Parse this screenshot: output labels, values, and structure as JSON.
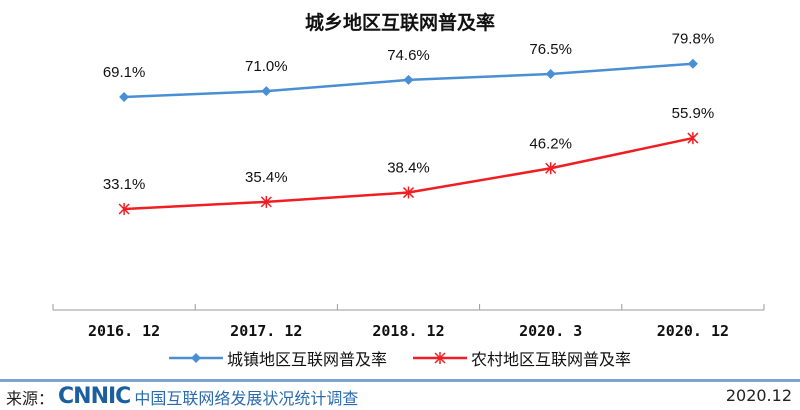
{
  "watermark": "CNNIC",
  "chart_data": {
    "type": "line",
    "title": "城乡地区互联网普及率",
    "categories": [
      "2016. 12",
      "2017. 12",
      "2018. 12",
      "2020. 3",
      "2020. 12"
    ],
    "series": [
      {
        "name": "城镇地区互联网普及率",
        "values": [
          69.1,
          71.0,
          74.6,
          76.5,
          79.8
        ],
        "labels": [
          "69.1%",
          "71.0%",
          "74.6%",
          "76.5%",
          "79.8%"
        ],
        "color": "#4a8fd4",
        "marker": "diamond"
      },
      {
        "name": "农村地区互联网普及率",
        "values": [
          33.1,
          35.4,
          38.4,
          46.2,
          55.9
        ],
        "labels": [
          "33.1%",
          "35.4%",
          "38.4%",
          "46.2%",
          "55.9%"
        ],
        "color": "#f01e23",
        "marker": "star"
      }
    ],
    "ylim": [
      0,
      90
    ],
    "grid": false,
    "legend": "bottom"
  },
  "footer": {
    "source_label": "来源：",
    "logo": "CNNIC",
    "survey": "中国互联网络发展状况统计调查",
    "date": "2020.12"
  }
}
